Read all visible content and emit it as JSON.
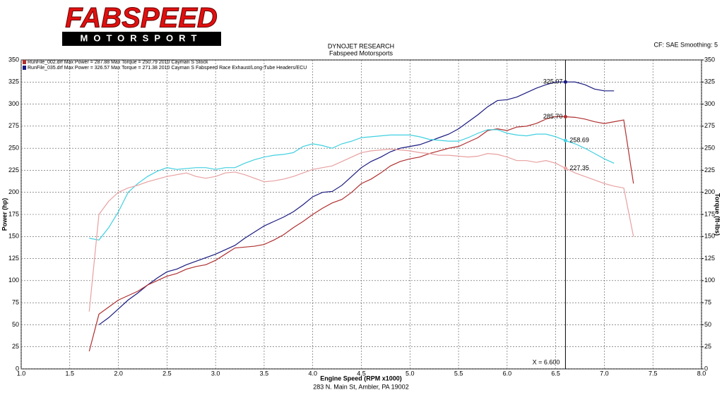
{
  "chart_data": {
    "type": "line",
    "logo": {
      "brand": "FABSPEED",
      "tagline": "MOTORSPORT"
    },
    "title": "DYNOJET RESEARCH",
    "subtitle": "Fabspeed Motorsports",
    "settings_text": "CF: SAE  Smoothing: 5",
    "footer": "283 N. Main St, Ambler, PA 19002",
    "xlabel": "Engine Speed (RPM x1000)",
    "ylabel": "Power (hp)",
    "y2label": "Torque (ft-lbs)",
    "xlim": [
      1.0,
      8.0
    ],
    "xticks": [
      {
        "value": 1.0,
        "label": "1.0"
      },
      1.5,
      {
        "value": 2.0,
        "label": "2.0"
      },
      2.5,
      {
        "value": 3.0,
        "label": "3.0"
      },
      3.5,
      {
        "value": 4.0,
        "label": "4.0"
      },
      4.5,
      {
        "value": 5.0,
        "label": "5.0"
      },
      5.5,
      {
        "value": 6.0,
        "label": "6.0"
      },
      6.5,
      {
        "value": 7.0,
        "label": "7.0"
      },
      7.5,
      {
        "value": 8.0,
        "label": "8.0"
      }
    ],
    "ylim": [
      0,
      350
    ],
    "yticks": [
      0,
      25,
      50,
      75,
      100,
      125,
      150,
      175,
      200,
      225,
      250,
      275,
      300,
      325,
      350
    ],
    "y2lim": [
      0,
      350
    ],
    "y2ticks": [
      0,
      25,
      50,
      75,
      100,
      125,
      150,
      175,
      200,
      225,
      250,
      275,
      300,
      325,
      350
    ],
    "grid": true,
    "legend": [
      {
        "text": "RunFile_002.drf Max Power = 287.88    Max Torque = 250.79   2010 Cayman S Stock",
        "color": "#b03030"
      },
      {
        "text": "RunFile_035.drf Max Power = 326.57    Max Torque = 271.38   2010 Cayman S Fabspeed Race Exhaust/Long-Tube Headers/ECU",
        "color": "#1a1a80"
      }
    ],
    "cursor": {
      "value": 6.6,
      "label": "X = 6.600"
    },
    "x": [
      1.7,
      1.8,
      1.9,
      2.0,
      2.1,
      2.2,
      2.3,
      2.4,
      2.5,
      2.6,
      2.7,
      2.8,
      2.9,
      3.0,
      3.1,
      3.2,
      3.3,
      3.4,
      3.5,
      3.6,
      3.7,
      3.8,
      3.9,
      4.0,
      4.1,
      4.2,
      4.3,
      4.4,
      4.5,
      4.6,
      4.7,
      4.8,
      4.9,
      5.0,
      5.1,
      5.2,
      5.3,
      5.4,
      5.5,
      5.6,
      5.7,
      5.8,
      5.9,
      6.0,
      6.1,
      6.2,
      6.3,
      6.4,
      6.5,
      6.6,
      6.7,
      6.8,
      6.9,
      7.0,
      7.1,
      7.2,
      7.3
    ],
    "series": [
      {
        "color": "#1a1a80",
        "marker_label": "325.07",
        "values": [
          null,
          50,
          58,
          68,
          78,
          86,
          95,
          103,
          110,
          113,
          118,
          122,
          126,
          130,
          135,
          140,
          148,
          155,
          162,
          167,
          172,
          178,
          186,
          195,
          200,
          201,
          208,
          218,
          228,
          235,
          240,
          246,
          250,
          252,
          254,
          258,
          262,
          266,
          272,
          280,
          288,
          297,
          304,
          305,
          308,
          313,
          318,
          322,
          325,
          325.07,
          325,
          322,
          317,
          315,
          315,
          null,
          null
        ]
      },
      {
        "color": "#b03030",
        "marker_label": "285.70",
        "values": [
          20,
          62,
          70,
          78,
          83,
          88,
          95,
          100,
          105,
          108,
          113,
          116,
          118,
          123,
          130,
          137,
          138,
          139,
          141,
          146,
          152,
          160,
          167,
          175,
          182,
          188,
          192,
          200,
          210,
          215,
          222,
          230,
          235,
          238,
          240,
          244,
          247,
          250,
          252,
          257,
          262,
          270,
          272,
          270,
          274,
          275,
          278,
          283,
          286,
          285.7,
          285,
          283,
          280,
          278,
          280,
          282,
          210
        ]
      },
      {
        "color": "#40d0e0",
        "axis": "y2",
        "marker_label": "258.69",
        "values": [
          148,
          146,
          160,
          178,
          200,
          210,
          218,
          224,
          228,
          226,
          227,
          228,
          228,
          226,
          228,
          228,
          233,
          237,
          240,
          242,
          243,
          245,
          252,
          255,
          253,
          250,
          255,
          258,
          262,
          263,
          264,
          265,
          265,
          265,
          263,
          260,
          259,
          258,
          258,
          262,
          267,
          271,
          271,
          267,
          265,
          264,
          266,
          266,
          263,
          258.69,
          255,
          250,
          244,
          238,
          233,
          null,
          null
        ]
      },
      {
        "color": "#e8a0a0",
        "axis": "y2",
        "marker_label": "227.35",
        "values": [
          65,
          175,
          190,
          200,
          205,
          208,
          212,
          215,
          218,
          220,
          222,
          218,
          216,
          218,
          222,
          223,
          220,
          216,
          212,
          213,
          215,
          218,
          222,
          226,
          228,
          230,
          235,
          240,
          245,
          247,
          248,
          249,
          248,
          247,
          245,
          244,
          242,
          242,
          241,
          240,
          241,
          244,
          243,
          240,
          236,
          236,
          234,
          236,
          233,
          227.35,
          222,
          218,
          214,
          210,
          207,
          205,
          150
        ]
      }
    ]
  }
}
